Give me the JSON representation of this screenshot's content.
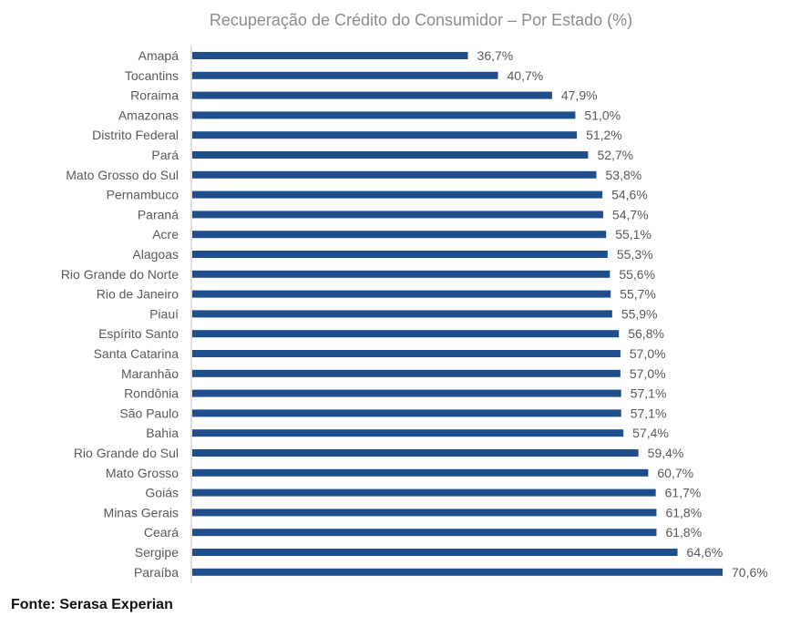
{
  "chart_data": {
    "type": "bar",
    "orientation": "horizontal",
    "title": "Recuperação de Crédito do Consumidor – Por Estado (%)",
    "categories": [
      "Amapá",
      "Tocantins",
      "Roraima",
      "Amazonas",
      "Distrito Federal",
      "Pará",
      "Mato Grosso do Sul",
      "Pernambuco",
      "Paraná",
      "Acre",
      "Alagoas",
      "Rio Grande do Norte",
      "Rio de Janeiro",
      "Piauí",
      "Espírito Santo",
      "Santa Catarina",
      "Maranhão",
      "Rondônia",
      "São Paulo",
      "Bahia",
      "Rio Grande do Sul",
      "Mato Grosso",
      "Goiás",
      "Minas Gerais",
      "Ceará",
      "Sergipe",
      "Paraíba"
    ],
    "values": [
      36.7,
      40.7,
      47.9,
      51.0,
      51.2,
      52.7,
      53.8,
      54.6,
      54.7,
      55.1,
      55.3,
      55.6,
      55.7,
      55.9,
      56.8,
      57.0,
      57.0,
      57.1,
      57.1,
      57.4,
      59.4,
      60.7,
      61.7,
      61.8,
      61.8,
      64.6,
      70.6
    ],
    "value_labels": [
      "36,7%",
      "40,7%",
      "47,9%",
      "51,0%",
      "51,2%",
      "52,7%",
      "53,8%",
      "54,6%",
      "54,7%",
      "55,1%",
      "55,3%",
      "55,6%",
      "55,7%",
      "55,9%",
      "56,8%",
      "57,0%",
      "57,0%",
      "57,1%",
      "57,1%",
      "57,4%",
      "59,4%",
      "60,7%",
      "61,7%",
      "61,8%",
      "61,8%",
      "64,6%",
      "70,6%"
    ],
    "xlim": [
      0,
      70.6
    ],
    "grid": false,
    "axis": "category axis line at left only",
    "colors": {
      "bar": "#1f4e8c",
      "label": "#595959",
      "title": "#8c8c8c",
      "axis": "#bfbfbf"
    }
  },
  "source": "Fonte: Serasa Experian"
}
